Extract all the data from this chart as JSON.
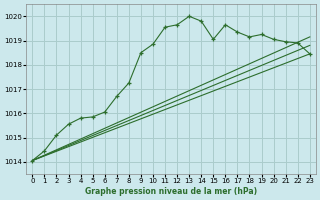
{
  "title": "Graphe pression niveau de la mer (hPa)",
  "bg_color": "#cce8ec",
  "grid_color": "#aacccc",
  "line_color": "#2d6e2d",
  "xlim": [
    -0.5,
    23.5
  ],
  "ylim": [
    1013.5,
    1020.5
  ],
  "xticks": [
    0,
    1,
    2,
    3,
    4,
    5,
    6,
    7,
    8,
    9,
    10,
    11,
    12,
    13,
    14,
    15,
    16,
    17,
    18,
    19,
    20,
    21,
    22,
    23
  ],
  "yticks": [
    1014,
    1015,
    1016,
    1017,
    1018,
    1019,
    1020
  ],
  "series": [
    {
      "x": [
        0,
        1,
        2,
        3,
        4,
        5,
        6,
        7,
        8,
        9,
        10,
        11,
        12,
        13,
        14,
        15,
        16,
        17,
        18,
        19,
        20,
        21,
        22,
        23
      ],
      "y": [
        1014.05,
        1014.45,
        1015.1,
        1015.55,
        1015.8,
        1015.85,
        1016.05,
        1016.7,
        1017.25,
        1018.5,
        1018.85,
        1019.55,
        1019.65,
        1020.0,
        1019.8,
        1019.05,
        1019.65,
        1019.35,
        1019.15,
        1019.25,
        1019.05,
        1018.95,
        1018.9,
        1018.45
      ],
      "marker": "+"
    },
    {
      "x": [
        0,
        23
      ],
      "y": [
        1014.05,
        1018.45
      ],
      "marker": null
    },
    {
      "x": [
        0,
        23
      ],
      "y": [
        1014.05,
        1019.15
      ],
      "marker": null
    },
    {
      "x": [
        0,
        23
      ],
      "y": [
        1014.05,
        1018.8
      ],
      "marker": null
    }
  ]
}
